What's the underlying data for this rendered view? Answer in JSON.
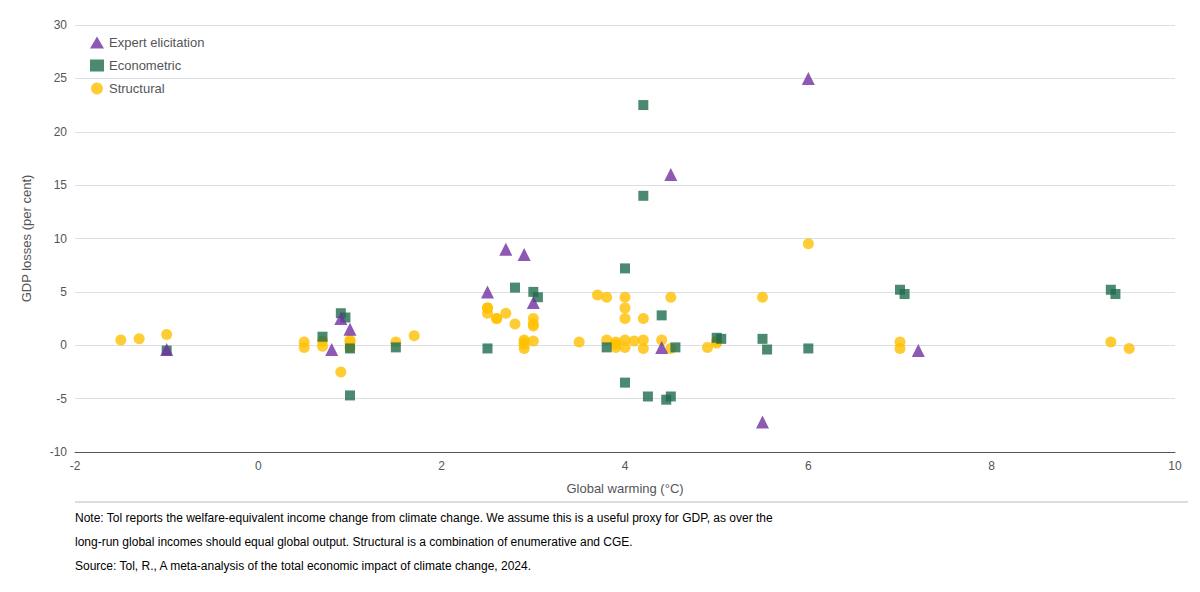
{
  "chart_data": {
    "type": "scatter",
    "xlabel": "Global warming (°C)",
    "ylabel": "GDP losses (per cent)",
    "annotations": [
      "Note: Tol reports the welfare-equivalent income change from climate change. We assume this is a useful proxy for GDP, as over the",
      "long-run global incomes should equal global output. Structural is a combination of enumerative and CGE.",
      "Source: Tol, R., A meta-analysis of the total economic impact of climate change, 2024."
    ],
    "xlim": [
      -2,
      10
    ],
    "ylim": [
      -10,
      30
    ],
    "xticks": [
      -2,
      0,
      2,
      4,
      6,
      8,
      10
    ],
    "yticks": [
      -10,
      -5,
      0,
      5,
      10,
      15,
      20,
      25,
      30
    ],
    "grid": true,
    "legend": "upper left",
    "series": [
      {
        "name": "Expert elicitation",
        "color": "#7030A0",
        "marker": "triangle",
        "x": [
          -1.0,
          0.8,
          0.9,
          1.0,
          2.5,
          2.7,
          2.9,
          3.0,
          4.4,
          4.5,
          5.5,
          6.0,
          7.2
        ],
        "values": [
          -0.4,
          -0.4,
          2.5,
          1.5,
          5.0,
          9.0,
          8.5,
          4.0,
          -0.2,
          16.0,
          -7.2,
          25.0,
          -0.5
        ]
      },
      {
        "name": "Econometric",
        "color": "#1F6B4E",
        "marker": "square",
        "x": [
          -1.0,
          0.7,
          0.9,
          0.95,
          1.0,
          1.0,
          1.5,
          2.5,
          2.8,
          3.0,
          3.05,
          3.8,
          4.0,
          4.0,
          4.2,
          4.2,
          4.25,
          4.4,
          4.45,
          4.5,
          4.55,
          5.0,
          5.05,
          5.5,
          5.55,
          6.0,
          7.0,
          7.05,
          9.3,
          9.35
        ],
        "values": [
          -0.5,
          0.8,
          3.0,
          2.6,
          -4.7,
          -0.3,
          -0.2,
          -0.3,
          5.4,
          5.0,
          4.5,
          -0.2,
          7.2,
          -3.5,
          22.5,
          14.0,
          -4.8,
          2.8,
          -5.1,
          -4.8,
          -0.2,
          0.7,
          0.6,
          0.6,
          -0.4,
          -0.3,
          5.2,
          4.8,
          5.2,
          4.8
        ]
      },
      {
        "name": "Structural",
        "color": "#FFC000",
        "marker": "circle",
        "x": [
          -1.5,
          -1.3,
          -1.0,
          0.5,
          0.5,
          0.7,
          0.7,
          0.9,
          1.0,
          1.0,
          1.0,
          1.5,
          1.7,
          2.5,
          2.5,
          2.5,
          2.6,
          2.6,
          2.7,
          2.8,
          2.9,
          2.9,
          2.9,
          2.9,
          3.0,
          3.0,
          3.0,
          3.0,
          3.5,
          3.7,
          3.8,
          3.8,
          3.9,
          3.9,
          3.9,
          4.0,
          4.0,
          4.0,
          4.0,
          4.0,
          4.1,
          4.2,
          4.2,
          4.2,
          4.4,
          4.5,
          4.5,
          4.9,
          5.0,
          5.0,
          5.5,
          6.0,
          7.0,
          7.0,
          9.3,
          9.5
        ],
        "values": [
          0.5,
          0.6,
          1.0,
          0.3,
          -0.2,
          0.4,
          -0.1,
          -2.5,
          0.5,
          0.3,
          -0.2,
          0.3,
          0.9,
          3.5,
          3.5,
          3.0,
          2.5,
          2.5,
          3.0,
          2.0,
          0.5,
          0.3,
          0.1,
          -0.3,
          2.5,
          2.0,
          1.8,
          0.4,
          0.3,
          4.7,
          4.5,
          0.5,
          0.3,
          0.1,
          -0.2,
          4.5,
          3.5,
          2.5,
          0.5,
          -0.2,
          0.4,
          2.5,
          0.5,
          -0.3,
          0.5,
          4.5,
          -0.3,
          -0.2,
          0.4,
          0.2,
          4.5,
          9.5,
          0.3,
          -0.3,
          0.3,
          -0.3
        ]
      }
    ]
  }
}
